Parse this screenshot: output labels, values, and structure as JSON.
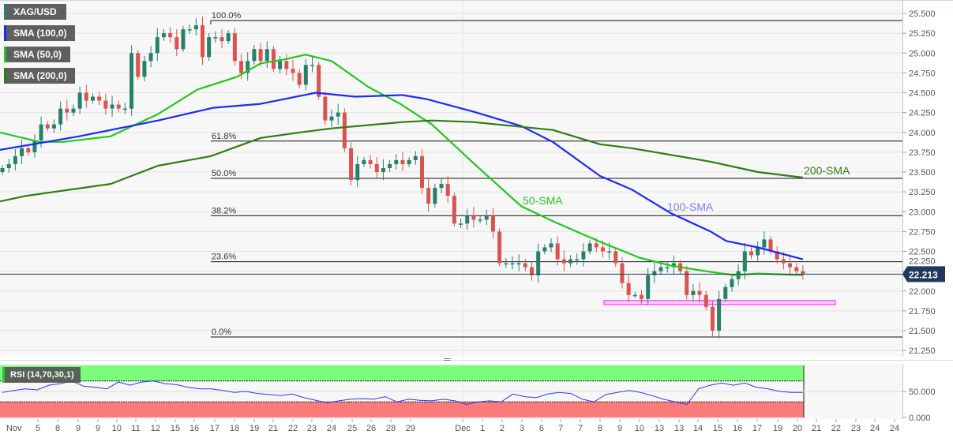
{
  "legend": {
    "symbol": "XAG/USD",
    "sma100": "SMA (100,0)",
    "sma50": "SMA (50,0)",
    "sma200": "SMA (200,0)",
    "rsi": "RSI (14,70,30,1)"
  },
  "colors": {
    "up": "#26806a",
    "down": "#d9534f",
    "sma100": "#1a2bff",
    "sma50": "#22c81e",
    "sma200": "#2e7d14",
    "zone": "#ff55ff",
    "current": "#1f3a5c",
    "rsi_line": "#2a3bff",
    "rsi_over": "#7cfc7c",
    "rsi_under": "#fb7a7a"
  },
  "chart_data": {
    "type": "candlestick",
    "title": "XAG/USD",
    "ylim": [
      21.2,
      25.65
    ],
    "y_ticks": [
      "25.500",
      "25.250",
      "25.000",
      "24.750",
      "24.500",
      "24.250",
      "24.000",
      "23.750",
      "23.500",
      "23.250",
      "23.000",
      "22.750",
      "22.500",
      "22.250",
      "22.000",
      "21.750",
      "21.500",
      "21.250"
    ],
    "x_ticks": [
      {
        "t": 0,
        "label": "Nov"
      },
      {
        "t": 1.61,
        "label": "5"
      },
      {
        "t": 2.62,
        "label": "8"
      },
      {
        "t": 3.66,
        "label": "9"
      },
      {
        "t": 4.67,
        "label": "9"
      },
      {
        "t": 5.63,
        "label": "10"
      },
      {
        "t": 6.6,
        "label": "11"
      },
      {
        "t": 7.6,
        "label": "12"
      },
      {
        "t": 8.61,
        "label": "15"
      },
      {
        "t": 9.58,
        "label": "16"
      },
      {
        "t": 10.62,
        "label": "17"
      },
      {
        "t": 11.63,
        "label": "18"
      },
      {
        "t": 12.64,
        "label": "19"
      },
      {
        "t": 13.6,
        "label": "21"
      },
      {
        "t": 14.61,
        "label": "22"
      },
      {
        "t": 15.57,
        "label": "23"
      },
      {
        "t": 16.58,
        "label": "24"
      },
      {
        "t": 17.63,
        "label": "25"
      },
      {
        "t": 18.59,
        "label": "26"
      },
      {
        "t": 19.6,
        "label": "28"
      },
      {
        "t": 20.6,
        "label": "29"
      },
      {
        "t": 23.26,
        "label": "Dec"
      },
      {
        "t": 24.27,
        "label": "1"
      },
      {
        "t": 25.27,
        "label": "2"
      },
      {
        "t": 26.28,
        "label": "3"
      },
      {
        "t": 27.28,
        "label": "6"
      },
      {
        "t": 28.25,
        "label": "7"
      },
      {
        "t": 29.26,
        "label": "7"
      },
      {
        "t": 30.26,
        "label": "8"
      },
      {
        "t": 31.27,
        "label": "9"
      },
      {
        "t": 32.27,
        "label": "10"
      },
      {
        "t": 33.28,
        "label": "13"
      },
      {
        "t": 34.29,
        "label": "13"
      },
      {
        "t": 35.25,
        "label": "14"
      },
      {
        "t": 36.26,
        "label": "15"
      },
      {
        "t": 37.27,
        "label": "16"
      },
      {
        "t": 38.27,
        "label": "17"
      },
      {
        "t": 39.32,
        "label": "19"
      },
      {
        "t": 40.32,
        "label": "20"
      },
      {
        "t": 41.29,
        "label": "21"
      },
      {
        "t": 42.29,
        "label": "22"
      },
      {
        "t": 43.3,
        "label": "23"
      },
      {
        "t": 44.27,
        "label": "24"
      },
      {
        "t": 45.27,
        "label": "24"
      }
    ],
    "t_range": [
      -0.2,
      40.6
    ],
    "closes": [
      23.55,
      23.6,
      23.7,
      23.8,
      23.75,
      23.9,
      24.1,
      24.05,
      24.1,
      24.3,
      24.25,
      24.3,
      24.5,
      24.4,
      24.45,
      24.4,
      24.3,
      24.35,
      24.3,
      24.3,
      25.0,
      24.7,
      24.9,
      25.0,
      25.2,
      25.25,
      25.2,
      25.05,
      25.3,
      25.3,
      25.35,
      24.95,
      25.2,
      25.2,
      25.15,
      25.25,
      24.9,
      24.75,
      24.9,
      25.05,
      24.9,
      25.05,
      24.8,
      24.9,
      24.8,
      24.75,
      24.6,
      24.85,
      24.85,
      24.45,
      24.15,
      24.2,
      24.25,
      23.8,
      23.4,
      23.6,
      23.65,
      23.6,
      23.5,
      23.55,
      23.6,
      23.65,
      23.6,
      23.65,
      23.7,
      23.3,
      23.1,
      23.3,
      23.35,
      23.2,
      22.85,
      22.85,
      22.95,
      22.9,
      22.9,
      22.95,
      22.75,
      22.35,
      22.35,
      22.35,
      22.35,
      22.3,
      22.2,
      22.5,
      22.55,
      22.6,
      22.4,
      22.35,
      22.4,
      22.4,
      22.5,
      22.6,
      22.55,
      22.5,
      22.5,
      22.35,
      22.1,
      21.95,
      21.95,
      21.9,
      22.2,
      22.25,
      22.3,
      22.3,
      22.35,
      22.25,
      21.95,
      22.0,
      21.95,
      21.8,
      21.5,
      21.9,
      22.05,
      22.15,
      22.25,
      22.5,
      22.45,
      22.55,
      22.65,
      22.5,
      22.4,
      22.35,
      22.3,
      22.25,
      22.213
    ],
    "current_price": "22.213",
    "sma": [
      {
        "name": "SMA 50",
        "label": "50-SMA",
        "points": [
          [
            -0.32,
            24.0
          ],
          [
            1.69,
            23.88
          ],
          [
            2.9,
            23.88
          ],
          [
            5.31,
            23.95
          ],
          [
            7.73,
            24.23
          ],
          [
            9.74,
            24.54
          ],
          [
            11.75,
            24.7
          ],
          [
            12.96,
            24.87
          ],
          [
            14.17,
            24.92
          ],
          [
            15.25,
            24.98
          ],
          [
            16.58,
            24.9
          ],
          [
            18.47,
            24.57
          ],
          [
            20.08,
            24.36
          ],
          [
            21.69,
            24.1
          ],
          [
            23.82,
            23.61
          ],
          [
            25.43,
            23.25
          ],
          [
            26.24,
            23.07
          ],
          [
            27.85,
            22.88
          ],
          [
            30.26,
            22.62
          ],
          [
            32.27,
            22.42
          ],
          [
            33.88,
            22.32
          ],
          [
            35.9,
            22.24
          ],
          [
            37.1,
            22.2
          ],
          [
            38.31,
            22.22
          ],
          [
            40.6,
            22.2
          ]
        ]
      },
      {
        "name": "SMA 100",
        "label": "100-SMA",
        "points": [
          [
            -0.32,
            23.78
          ],
          [
            3.7,
            23.95
          ],
          [
            7.73,
            24.15
          ],
          [
            10.54,
            24.31
          ],
          [
            12.96,
            24.36
          ],
          [
            15.77,
            24.5
          ],
          [
            17.79,
            24.45
          ],
          [
            20.2,
            24.47
          ],
          [
            21.41,
            24.42
          ],
          [
            23.82,
            24.26
          ],
          [
            26.24,
            24.08
          ],
          [
            27.85,
            23.88
          ],
          [
            30.26,
            23.45
          ],
          [
            31.87,
            23.28
          ],
          [
            33.88,
            22.98
          ],
          [
            35.9,
            22.75
          ],
          [
            36.7,
            22.63
          ],
          [
            38.31,
            22.55
          ],
          [
            40.6,
            22.4
          ]
        ]
      },
      {
        "name": "SMA 200",
        "label": "200-SMA",
        "points": [
          [
            -0.32,
            23.13
          ],
          [
            1.0,
            23.2
          ],
          [
            5.31,
            23.35
          ],
          [
            7.73,
            23.58
          ],
          [
            10.42,
            23.7
          ],
          [
            12.96,
            23.93
          ],
          [
            14.97,
            24.0
          ],
          [
            16.58,
            24.05
          ],
          [
            20.2,
            24.13
          ],
          [
            21.69,
            24.15
          ],
          [
            23.82,
            24.13
          ],
          [
            25.83,
            24.08
          ],
          [
            27.85,
            24.03
          ],
          [
            30.26,
            23.85
          ],
          [
            31.87,
            23.8
          ],
          [
            35.9,
            23.63
          ],
          [
            38.31,
            23.5
          ],
          [
            40.6,
            23.43
          ]
        ]
      }
    ],
    "fibonacci": {
      "start_t": 10.42,
      "levels": [
        {
          "label": "100.0%",
          "price": 25.41
        },
        {
          "label": "61.8%",
          "price": 23.89
        },
        {
          "label": "50.0%",
          "price": 23.42
        },
        {
          "label": "38.2%",
          "price": 22.95
        },
        {
          "label": "23.6%",
          "price": 22.37
        },
        {
          "label": "0.0%",
          "price": 21.42
        }
      ]
    },
    "support_zone": {
      "t_start": 30.46,
      "t_end": 42.25,
      "price_low": 21.83,
      "price_high": 21.88
    },
    "rsi": {
      "ylim": [
        0,
        100
      ],
      "overbought": 70,
      "oversold": 30,
      "y_ticks": [
        "50.000",
        "0.000"
      ],
      "values": [
        48,
        52,
        55,
        53,
        62,
        65,
        70,
        60,
        58,
        55,
        68,
        62,
        68,
        70,
        65,
        63,
        58,
        55,
        55,
        52,
        48,
        50,
        46,
        44,
        42,
        45,
        38,
        33,
        28,
        32,
        35,
        36,
        35,
        40,
        30,
        35,
        33,
        32,
        35,
        32,
        25,
        30,
        32,
        30,
        45,
        40,
        38,
        45,
        48,
        46,
        35,
        30,
        44,
        48,
        52,
        48,
        42,
        35,
        30,
        25,
        55,
        62,
        66,
        62,
        66,
        58,
        55,
        50,
        48,
        48
      ]
    }
  }
}
